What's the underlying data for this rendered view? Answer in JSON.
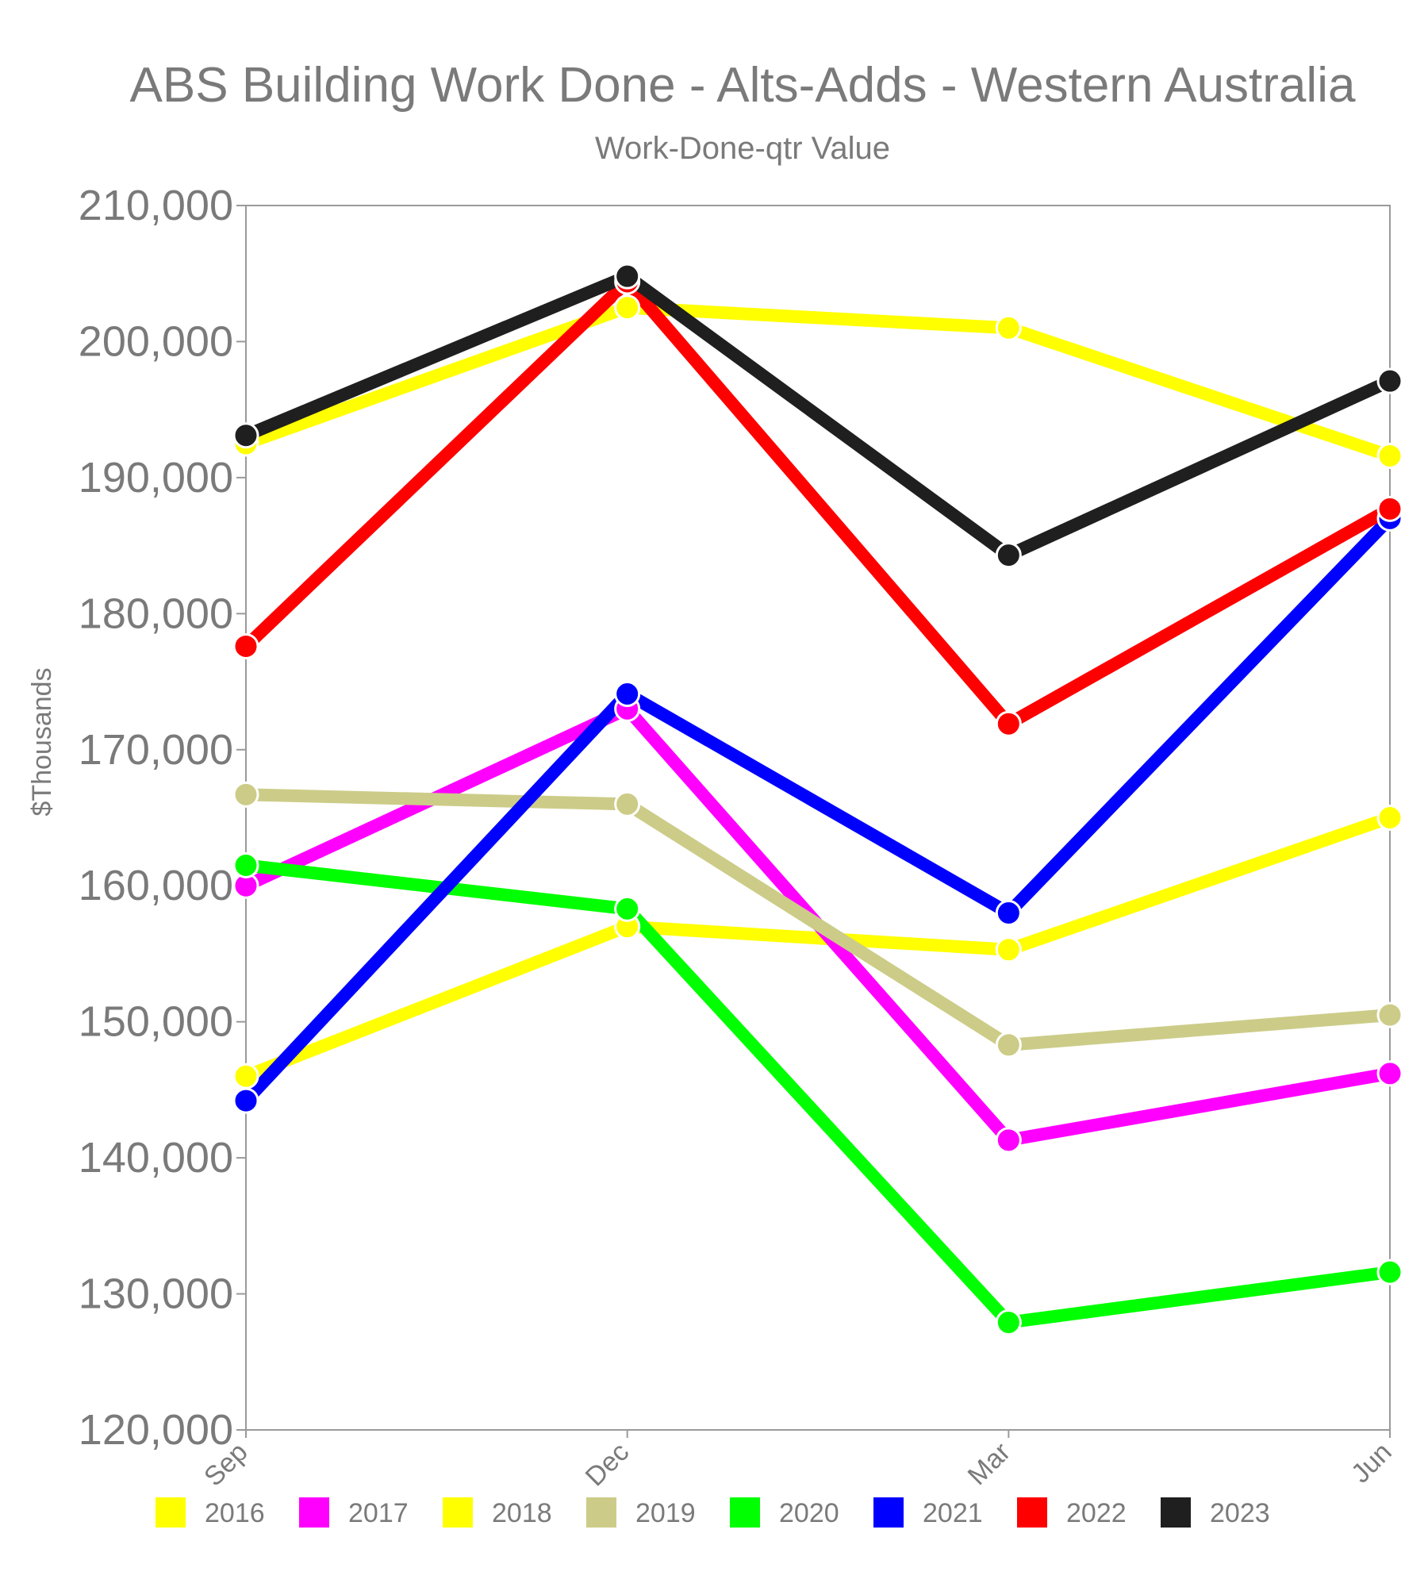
{
  "chart_data": {
    "type": "line",
    "title": "ABS Building Work Done - Alts-Adds - Western Australia",
    "subtitle": "Work-Done-qtr Value",
    "ylabel": "$Thousands",
    "xlabel": "",
    "categories": [
      "Sep",
      "Dec",
      "Mar",
      "Jun"
    ],
    "ylim": [
      120000,
      210000
    ],
    "yticks": [
      120000,
      130000,
      140000,
      150000,
      160000,
      170000,
      180000,
      190000,
      200000,
      210000
    ],
    "ytick_labels": [
      "120,000",
      "130,000",
      "140,000",
      "150,000",
      "160,000",
      "170,000",
      "180,000",
      "190,000",
      "200,000",
      "210,000"
    ],
    "grid": false,
    "legend_position": "bottom",
    "series": [
      {
        "name": "2016",
        "color": "#ffff00",
        "values": [
          146000,
          157000,
          155300,
          165000
        ]
      },
      {
        "name": "2017",
        "color": "#ff00ff",
        "values": [
          160000,
          173000,
          141300,
          146200
        ]
      },
      {
        "name": "2018",
        "color": "#ffff00",
        "values": [
          192500,
          202500,
          201000,
          191600
        ]
      },
      {
        "name": "2019",
        "color": "#cccc88",
        "values": [
          166700,
          166000,
          148300,
          150500
        ]
      },
      {
        "name": "2020",
        "color": "#00ff00",
        "values": [
          161500,
          158300,
          127900,
          131600
        ]
      },
      {
        "name": "2021",
        "color": "#0000ff",
        "values": [
          144200,
          174100,
          158000,
          187000
        ]
      },
      {
        "name": "2022",
        "color": "#ff0000",
        "values": [
          177600,
          204400,
          171900,
          187700
        ]
      },
      {
        "name": "2023",
        "color": "#1f1f1f",
        "values": [
          193100,
          204800,
          184300,
          197100
        ]
      }
    ]
  }
}
